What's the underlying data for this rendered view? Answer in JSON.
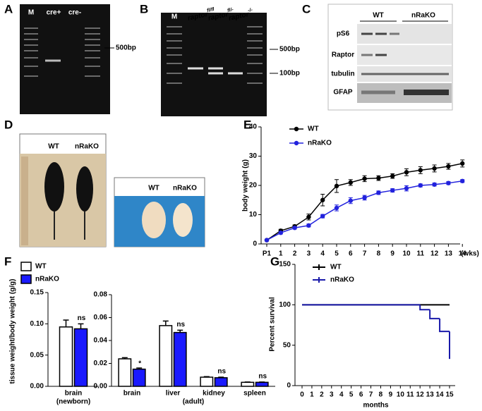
{
  "figure": {
    "panel_labels": [
      "A",
      "B",
      "C",
      "D",
      "E",
      "F",
      "G"
    ]
  },
  "gels": {
    "A": {
      "lanes": [
        "M",
        "cre+",
        "cre-"
      ],
      "markers": [
        "500bp"
      ]
    },
    "B": {
      "lanes": [
        "M",
        {
          "base": "raptor",
          "sup": "fl/fl"
        },
        {
          "base": "raptor",
          "sup": "fl/-"
        },
        {
          "base": "raptor",
          "sup": "-/-"
        }
      ],
      "markers": [
        "500bp",
        "100bp"
      ]
    },
    "C": {
      "groups": [
        "WT",
        "nRaKO"
      ],
      "rows": [
        "pS6",
        "Raptor",
        "tubulin",
        "GFAP"
      ]
    },
    "D": {
      "photo1": [
        "WT",
        "nRaKO"
      ],
      "photo2": [
        "WT",
        "nRaKO"
      ]
    }
  },
  "chart_data": [
    {
      "type": "line",
      "ylabel": "body weight (g)",
      "x_unit": "(wks)",
      "categories": [
        "P1",
        "1",
        "2",
        "3",
        "4",
        "5",
        "6",
        "7",
        "8",
        "9",
        "10",
        "11",
        "12",
        "13",
        "14"
      ],
      "ylim": [
        0,
        40
      ],
      "yticks": [
        0,
        10,
        20,
        30,
        40
      ],
      "series": [
        {
          "name": "WT",
          "color": "#000000",
          "values": [
            1.3,
            4.5,
            6,
            9.2,
            15,
            19.8,
            21,
            22.3,
            22.5,
            23.2,
            24.5,
            25.2,
            25.8,
            26.5,
            27.5
          ],
          "errors": [
            0.3,
            0.5,
            0.5,
            1,
            2,
            2.2,
            1,
            1,
            0.8,
            0.8,
            1.2,
            1.2,
            1.2,
            1,
            1.2
          ]
        },
        {
          "name": "nRaKO",
          "color": "#2222dd",
          "values": [
            1.3,
            3.8,
            5.5,
            6.3,
            9.5,
            12.3,
            14.8,
            15.8,
            17.5,
            18.3,
            19,
            20,
            20.3,
            20.8,
            21.5
          ],
          "errors": [
            0.2,
            0.4,
            0.4,
            0.5,
            0.6,
            1,
            1,
            0.8,
            0.6,
            0.6,
            0.9,
            0.5,
            0.5,
            0.5,
            0.5
          ]
        }
      ]
    },
    {
      "type": "bar",
      "ylabel": "tissue weight/body weight (g/g)",
      "x_label": "(newborn)",
      "legend": true,
      "categories": [
        "brain"
      ],
      "annotations": [
        "ns"
      ],
      "ylim": [
        0,
        0.15
      ],
      "yticks": [
        {
          "value": 0,
          "label": "0.00"
        },
        {
          "value": 0.05,
          "label": "0.05"
        },
        {
          "value": 0.1,
          "label": "0.10"
        },
        {
          "value": 0.15,
          "label": "0.15"
        }
      ],
      "series": [
        {
          "name": "WT",
          "color": "#ffffff",
          "values": [
            0.095
          ],
          "errors": [
            0.011
          ]
        },
        {
          "name": "nRaKO",
          "color": "#1a1aff",
          "values": [
            0.092
          ],
          "errors": [
            0.008
          ]
        }
      ]
    },
    {
      "type": "bar",
      "x_label": "(adult)",
      "categories": [
        "brain",
        "liver",
        "kidney",
        "spleen"
      ],
      "annotations": [
        "*",
        "ns",
        "ns",
        "ns"
      ],
      "ylim": [
        0,
        0.08
      ],
      "yticks": [
        {
          "value": 0,
          "label": "0.00"
        },
        {
          "value": 0.02,
          "label": "0.02"
        },
        {
          "value": 0.04,
          "label": "0.04"
        },
        {
          "value": 0.06,
          "label": "0.06"
        },
        {
          "value": 0.08,
          "label": "0.08"
        }
      ],
      "series": [
        {
          "name": "WT",
          "color": "#ffffff",
          "values": [
            0.024,
            0.053,
            0.008,
            0.0035
          ],
          "errors": [
            0.001,
            0.004,
            0.0005,
            0.0003
          ]
        },
        {
          "name": "nRaKO",
          "color": "#1a1aff",
          "values": [
            0.015,
            0.047,
            0.0075,
            0.0035
          ],
          "errors": [
            0.001,
            0.002,
            0.0005,
            0.0003
          ]
        }
      ]
    },
    {
      "type": "step",
      "ylabel": "Percent survival",
      "xlabel": "months",
      "xlim": [
        0,
        15
      ],
      "xticks": [
        0,
        1,
        2,
        3,
        4,
        5,
        6,
        7,
        8,
        9,
        10,
        11,
        12,
        13,
        14,
        15
      ],
      "ylim": [
        0,
        150
      ],
      "yticks": [
        0,
        50,
        100,
        150
      ],
      "series": [
        {
          "name": "WT",
          "color": "#000000",
          "x": [
            0,
            15
          ],
          "values": [
            100,
            100
          ]
        },
        {
          "name": "nRaKO",
          "color": "#1a1aaa",
          "x": [
            0,
            12,
            13,
            14,
            15
          ],
          "values": [
            100,
            94,
            83,
            67,
            33
          ]
        }
      ]
    }
  ]
}
